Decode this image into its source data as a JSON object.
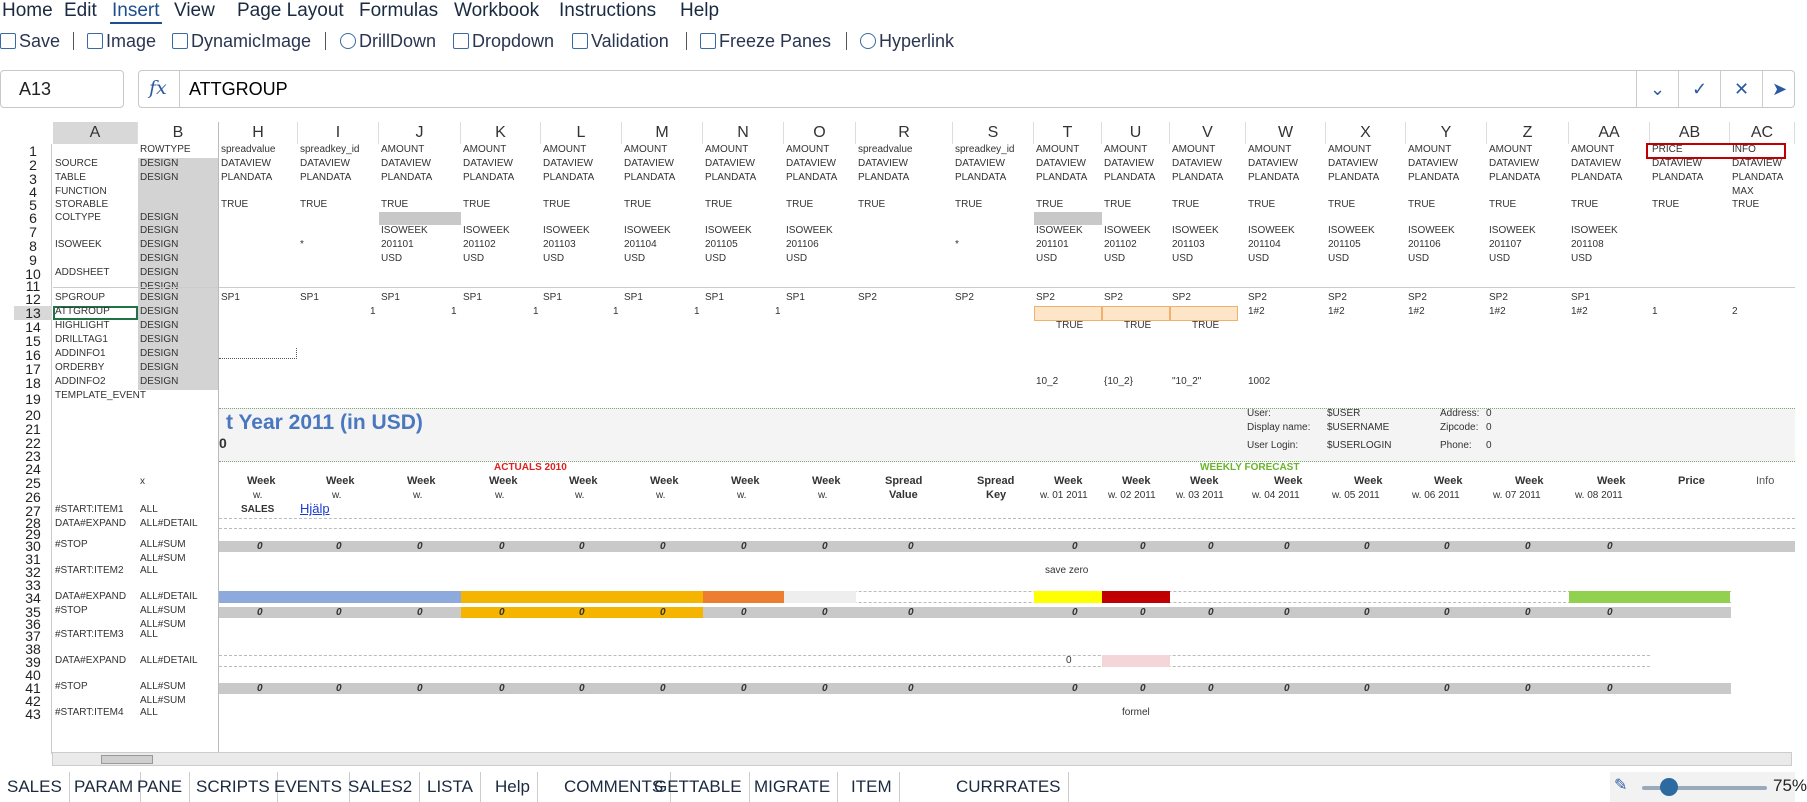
{
  "menu": [
    "Home",
    "Edit",
    "Insert",
    "View",
    "Page Layout",
    "Formulas",
    "Workbook",
    "Instructions",
    "Help"
  ],
  "toolbar": {
    "save": "Save",
    "image": "Image",
    "dynamic_image": "DynamicImage",
    "drilldown": "DrillDown",
    "dropdown": "Dropdown",
    "validation": "Validation",
    "freeze": "Freeze Panes",
    "hyperlink": "Hyperlink"
  },
  "namebox": "A13",
  "formula": "ATTGROUP",
  "columns": [
    "A",
    "B",
    "H",
    "I",
    "J",
    "K",
    "L",
    "M",
    "N",
    "O",
    "R",
    "S",
    "T",
    "U",
    "V",
    "W",
    "X",
    "Y",
    "Z",
    "AA",
    "AB",
    "AC"
  ],
  "rows": [
    "1",
    "2",
    "3",
    "4",
    "5",
    "6",
    "7",
    "8",
    "9",
    "10",
    "11",
    "12",
    "13",
    "14",
    "15",
    "16",
    "17",
    "18",
    "19",
    "20",
    "21",
    "22",
    "23",
    "24",
    "25",
    "26",
    "27",
    "28",
    "29",
    "30",
    "31",
    "32",
    "33",
    "34",
    "35",
    "36",
    "37",
    "38",
    "39",
    "40",
    "41",
    "42",
    "43"
  ],
  "colA": {
    "r1": "",
    "r2": "SOURCE",
    "r3": "TABLE",
    "r4": "FUNCTION",
    "r5": "STORABLE",
    "r6": "COLTYPE",
    "r8": "ISOWEEK",
    "r10": "ADDSHEET",
    "r12": "SPGROUP",
    "r13": "ATTGROUP",
    "r14": "HIGHLIGHT",
    "r15": "DRILLTAG1",
    "r16": "ADDINFO1",
    "r17": "ORDERBY",
    "r18": "ADDINFO2",
    "r19": "TEMPLATE_EVENT",
    "r27": "#START:ITEM1",
    "r28": "DATA#EXPAND",
    "r30": "#STOP",
    "r32": "#START:ITEM2",
    "r34": "DATA#EXPAND",
    "r35": "#STOP",
    "r37": "#START:ITEM3",
    "r39": "DATA#EXPAND",
    "r41": "#STOP",
    "r43": "#START:ITEM4"
  },
  "colB": {
    "r1": "ROWTYPE",
    "design": "DESIGN",
    "r25": "x",
    "all": "ALL",
    "detail": "ALL#DETAIL",
    "sum": "ALL#SUM"
  },
  "row1": [
    "spreadvalue",
    "spreadkey_id",
    "AMOUNT",
    "AMOUNT",
    "AMOUNT",
    "AMOUNT",
    "AMOUNT",
    "AMOUNT",
    "spreadvalue",
    "spreadkey_id",
    "AMOUNT",
    "AMOUNT",
    "AMOUNT",
    "AMOUNT",
    "AMOUNT",
    "AMOUNT",
    "AMOUNT",
    "AMOUNT",
    "PRICE",
    "INFO"
  ],
  "row2": "DATAVIEW",
  "row3": "PLANDATA",
  "row4_ac": "MAX",
  "row5": "TRUE",
  "row7": "ISOWEEK",
  "row8a": [
    "201101",
    "201102",
    "201103",
    "201104",
    "201105",
    "201106"
  ],
  "row8b": [
    "201101",
    "201102",
    "201103",
    "201104",
    "201105",
    "201106",
    "201107",
    "201108"
  ],
  "star": "*",
  "usd": "USD",
  "row12": [
    "SP1",
    "SP1",
    "SP1",
    "SP1",
    "SP1",
    "SP1",
    "SP1",
    "SP1",
    "SP2",
    "SP2",
    "SP2",
    "SP2",
    "SP2",
    "SP2",
    "SP2",
    "SP2",
    "SP2",
    "SP1"
  ],
  "row13_one": "1",
  "row13_hash": "1#2",
  "row13_two": "2",
  "row14": "TRUE",
  "row18": [
    "10_2",
    "{10_2}",
    "\"10_2\"",
    "1002"
  ],
  "title": "t Year 2011 (in USD)",
  "row22_frag": "0",
  "userinfo": {
    "user_l": "User:",
    "user_v": "$USER",
    "dn_l": "Display name:",
    "dn_v": "$USERNAME",
    "ul_l": "User Login:",
    "ul_v": "$USERLOGIN",
    "addr_l": "Address:",
    "addr_v": "0",
    "zip_l": "Zipcode:",
    "zip_v": "0",
    "ph_l": "Phone:",
    "ph_v": "0"
  },
  "actuals": "ACTUALS 2010",
  "forecast": "WEEKLY FORECAST",
  "week": "Week",
  "w": "w.",
  "spread": "Spread",
  "value": "Value",
  "key": "Key",
  "weeks2011": [
    "w. 01 2011",
    "w. 02 2011",
    "w. 03 2011",
    "w. 04 2011",
    "w. 05 2011",
    "w. 06 2011",
    "w. 07 2011",
    "w. 08 2011"
  ],
  "price": "Price",
  "info": "Info",
  "sales": "SALES",
  "hjalp": "Hjälp",
  "zero": "0",
  "save_zero": "save zero",
  "formel": "formel",
  "sheets": [
    "SALES",
    "PARAM",
    "PANE",
    "SCRIPTS",
    "EVENTS",
    "SALES2",
    "LISTA",
    "Help",
    "COMMENTS",
    "GETTABLE",
    "MIGRATE",
    "ITEM",
    "CURRRATES"
  ],
  "zoom": "75%",
  "colors": {
    "accent": "#1e4e90",
    "title": "#4a78c0",
    "orange": "#f5b400",
    "actuals": "#e02020",
    "forecast": "#6ab42a"
  }
}
